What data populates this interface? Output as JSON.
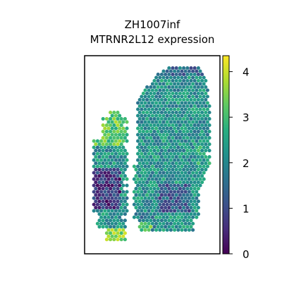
{
  "chart_data": {
    "type": "scatter",
    "subtype": "spatial-hexbin",
    "title_lines": [
      "ZH1007inf",
      "MTRNR2L12 expression"
    ],
    "xlabel": "",
    "ylabel": "",
    "grid": false,
    "axes_ticks_visible": false,
    "colorbar": {
      "colormap": "viridis",
      "vmin": 0,
      "vmax": 4.35,
      "ticks": [
        0,
        1,
        2,
        3,
        4
      ],
      "tick_labels": [
        "0",
        "1",
        "2",
        "3",
        "4"
      ]
    },
    "value_summary": {
      "typical_range": [
        1.5,
        3.2
      ],
      "high_regions": [
        "left strip top",
        "bottom edge of left strip"
      ],
      "low_regions": [
        "left strip lower-middle",
        "right mass lower section",
        "right mass top edge"
      ]
    },
    "colors": {
      "viridis_0": "#440154",
      "viridis_25": "#3b528b",
      "viridis_50": "#21918c",
      "viridis_75": "#5ec962",
      "viridis_100": "#fde725"
    }
  }
}
